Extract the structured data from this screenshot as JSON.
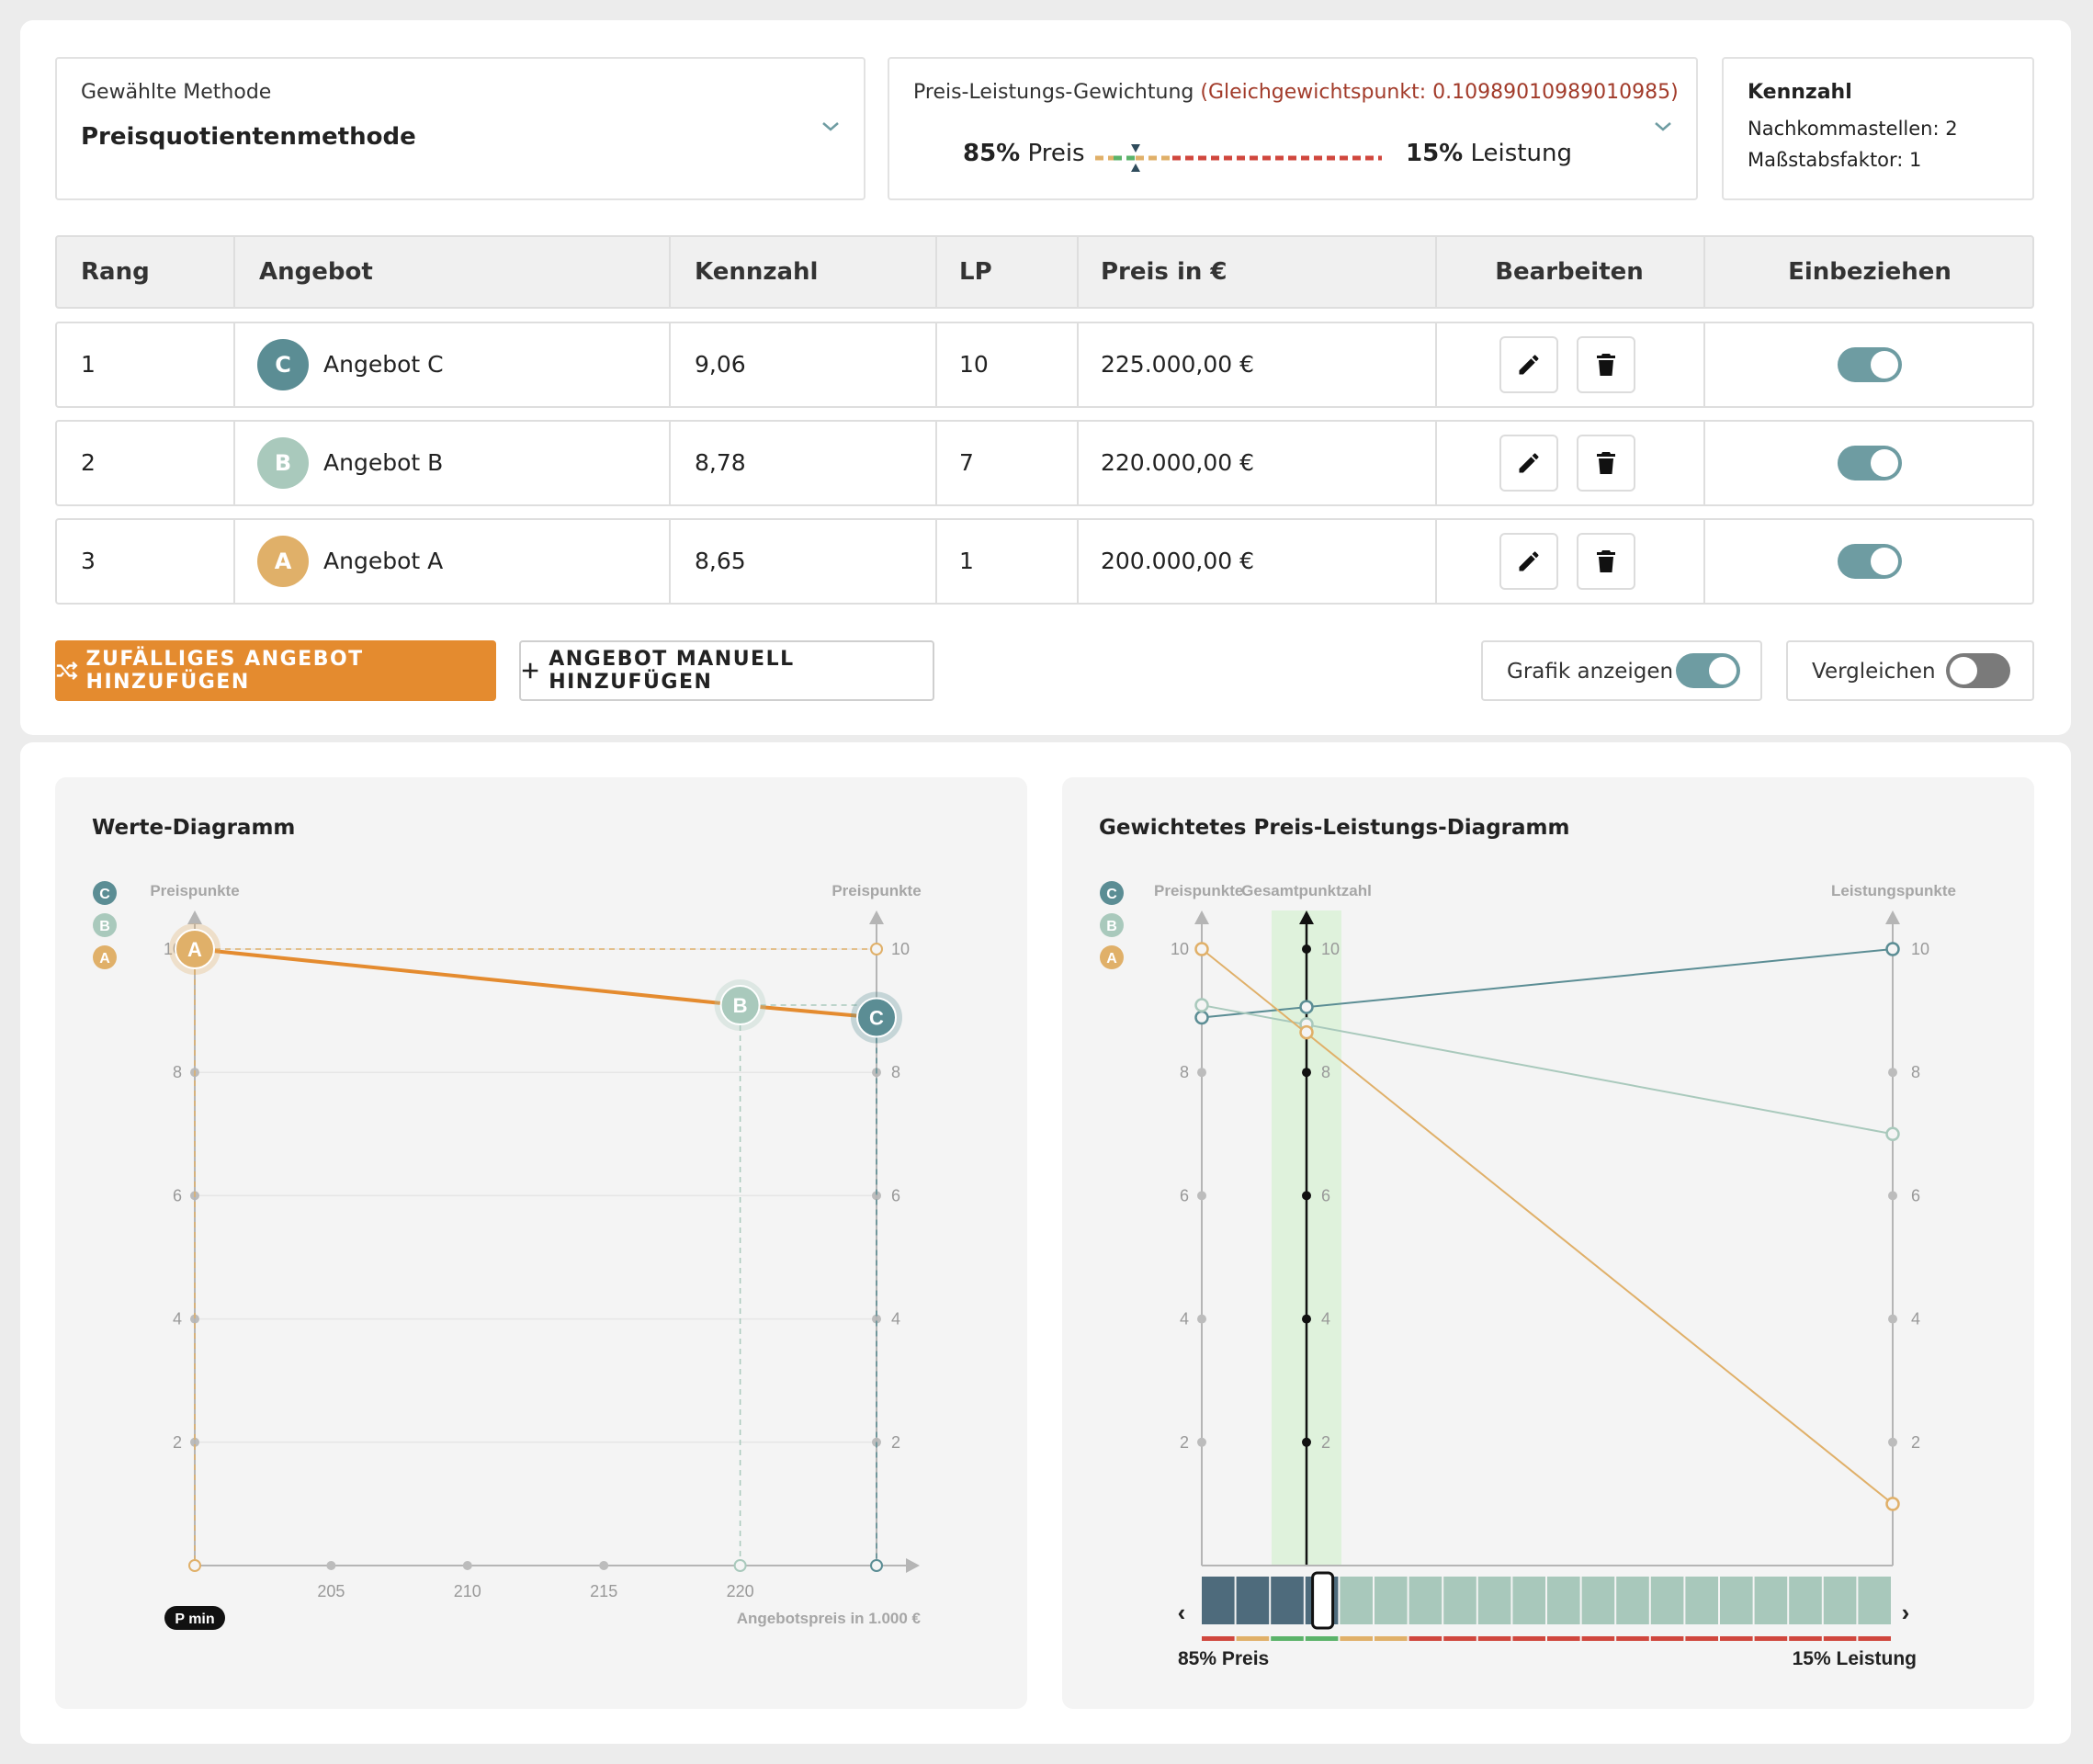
{
  "method": {
    "label": "Gewählte Methode",
    "value": "Preisquotientenmethode"
  },
  "weighting": {
    "label": "Preis-Leistungs-Gewichtung",
    "equilibrium": "(Gleichgewichtspunkt: 0.10989010989010985)",
    "price_pct": "85%",
    "price_word": "Preis",
    "perf_pct": "15%",
    "perf_word": "Leistung"
  },
  "kennzahl": {
    "title": "Kennzahl",
    "decimals": "Nachkommastellen: 2",
    "scale": "Maßstabsfaktor: 1"
  },
  "table": {
    "headers": [
      "Rang",
      "Angebot",
      "Kennzahl",
      "LP",
      "Preis in €",
      "Bearbeiten",
      "Einbeziehen"
    ],
    "rows": [
      {
        "rank": "1",
        "letter": "C",
        "name": "Angebot C",
        "kennzahl": "9,06",
        "lp": "10",
        "price": "225.000,00 €",
        "include": true
      },
      {
        "rank": "2",
        "letter": "B",
        "name": "Angebot B",
        "kennzahl": "8,78",
        "lp": "7",
        "price": "220.000,00 €",
        "include": true
      },
      {
        "rank": "3",
        "letter": "A",
        "name": "Angebot A",
        "kennzahl": "8,65",
        "lp": "1",
        "price": "200.000,00 €",
        "include": true
      }
    ]
  },
  "actions": {
    "random_add": "ZUFÄLLIGES ANGEBOT HINZUFÜGEN",
    "manual_add": "ANGEBOT MANUELL HINZUFÜGEN",
    "show_graphic": "Grafik anzeigen",
    "show_graphic_on": true,
    "compare": "Vergleichen",
    "compare_on": false
  },
  "colors": {
    "C": "#5b8d94",
    "B": "#a9c9bc",
    "A": "#e0b069",
    "accent": "#e48b2f",
    "equilibrium_text": "#a23b2a"
  },
  "chart_data": [
    {
      "type": "line",
      "title": "Werte-Diagramm",
      "ylabel_left": "Preispunkte",
      "ylabel_right": "Preispunkte",
      "xlabel": "Angebotspreis in 1.000 €",
      "x_min_label": "P min",
      "x_ticks": [
        200,
        205,
        210,
        215,
        220,
        225
      ],
      "x_tick_labels": [
        "205",
        "210",
        "215",
        "220"
      ],
      "xlim": [
        200,
        225
      ],
      "ylim": [
        0,
        10
      ],
      "y_ticks": [
        2,
        4,
        6,
        8,
        10
      ],
      "legend": [
        "C",
        "B",
        "A"
      ],
      "points": [
        {
          "name": "A",
          "x": 200,
          "y": 10
        },
        {
          "name": "B",
          "x": 220,
          "y": 9.09
        },
        {
          "name": "C",
          "x": 225,
          "y": 8.89
        }
      ]
    },
    {
      "type": "line",
      "title": "Gewichtetes Preis-Leistungs-Diagramm",
      "axis_left": "Preispunkte",
      "axis_middle": "Gesamtpunktzahl",
      "axis_right": "Leistungspunkte",
      "ylim": [
        0,
        10
      ],
      "y_ticks": [
        2,
        4,
        6,
        8,
        10
      ],
      "price_weight": 0.85,
      "slider_left": "85% Preis",
      "slider_right": "15% Leistung",
      "slider_segments": 20,
      "legend": [
        "C",
        "B",
        "A"
      ],
      "series": [
        {
          "name": "C",
          "price_points": 8.89,
          "performance_points": 10,
          "total": 9.06
        },
        {
          "name": "B",
          "price_points": 9.09,
          "performance_points": 7,
          "total": 8.78
        },
        {
          "name": "A",
          "price_points": 10,
          "performance_points": 1,
          "total": 8.65
        }
      ]
    }
  ]
}
